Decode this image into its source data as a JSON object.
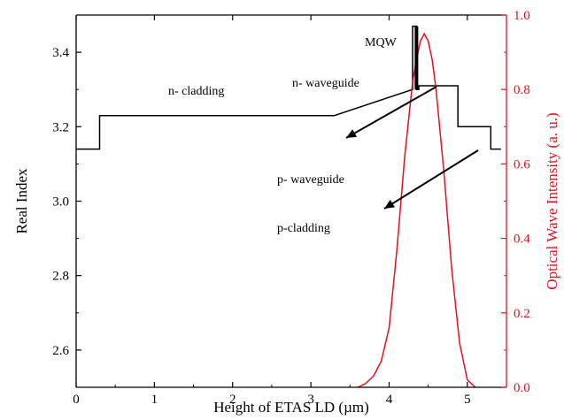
{
  "chart_data": {
    "type": "line",
    "xlabel": "Height of ETAS LD (µm)",
    "ylabel_left": "Real Index",
    "ylabel_right": "Optical Wave Intensity (a. u.)",
    "xlim": [
      0,
      5.5
    ],
    "ylim_left": [
      2.5,
      3.5
    ],
    "ylim_right": [
      0.0,
      1.0
    ],
    "x_ticks": [
      "0",
      "1",
      "2",
      "3",
      "4",
      "5"
    ],
    "y_ticks_left": [
      "2.6",
      "2.8",
      "3.0",
      "3.2",
      "3.4"
    ],
    "y_ticks_right": [
      "0.0",
      "0.2",
      "0.4",
      "0.6",
      "0.8",
      "1.0"
    ],
    "grid": false,
    "colors": {
      "index": "#000000",
      "intensity": "#e8101a"
    },
    "series": [
      {
        "axis": "left",
        "x": [
          0.0,
          0.3,
          0.3,
          0.35,
          3.3,
          4.3,
          4.3,
          4.35,
          4.35,
          4.38,
          4.38,
          4.88,
          4.88,
          5.3,
          5.3,
          5.43
        ],
        "values": [
          3.14,
          3.14,
          3.23,
          3.23,
          3.23,
          3.3,
          3.47,
          3.47,
          3.3,
          3.3,
          3.31,
          3.31,
          3.2,
          3.2,
          3.14,
          3.14
        ]
      },
      {
        "axis": "right",
        "x": [
          3.6,
          3.7,
          3.8,
          3.9,
          4.0,
          4.1,
          4.2,
          4.3,
          4.35,
          4.4,
          4.45,
          4.5,
          4.55,
          4.6,
          4.7,
          4.8,
          4.9,
          5.0,
          5.1
        ],
        "values": [
          0.0,
          0.01,
          0.03,
          0.07,
          0.16,
          0.37,
          0.62,
          0.82,
          0.88,
          0.93,
          0.95,
          0.93,
          0.88,
          0.8,
          0.58,
          0.32,
          0.12,
          0.02,
          0.0
        ]
      }
    ],
    "annotations": [
      {
        "text": "MQW"
      },
      {
        "text": "n- cladding"
      },
      {
        "text": "n- waveguide"
      },
      {
        "text": "p- waveguide"
      },
      {
        "text": "p-cladding"
      }
    ]
  }
}
